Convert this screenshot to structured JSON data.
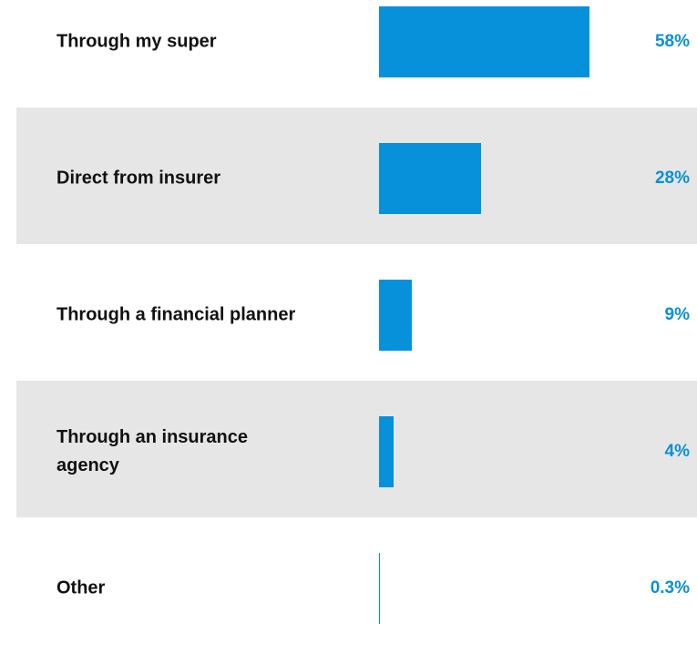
{
  "chart_data": {
    "type": "bar",
    "orientation": "horizontal",
    "categories": [
      "Through my super",
      "Direct from insurer",
      "Through a financial planner",
      "Through an insurance agency",
      "Other"
    ],
    "values": [
      58,
      28,
      9,
      4,
      0.3
    ],
    "value_labels": [
      "58%",
      "28%",
      "9%",
      "4%",
      "0.3%"
    ],
    "color": "#0791db"
  }
}
